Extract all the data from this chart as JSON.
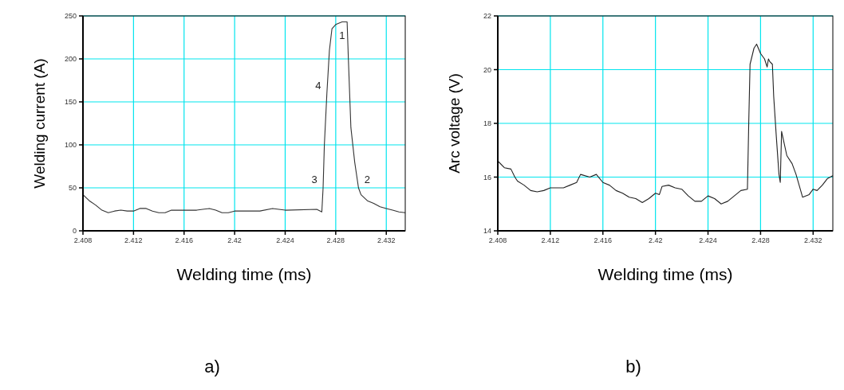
{
  "chart_data": [
    {
      "type": "line",
      "xlabel": "Welding time (ms)",
      "ylabel": "Welding current (A)",
      "annotations": [
        {
          "text": "1",
          "x": 2.4285,
          "y": 243
        },
        {
          "text": "4",
          "x": 2.4273,
          "y": 160
        },
        {
          "text": "3",
          "x": 2.427,
          "y": 50
        },
        {
          "text": "2",
          "x": 2.4298,
          "y": 50
        },
        "a)"
      ],
      "xlim": [
        2.408,
        2.4335
      ],
      "ylim": [
        0,
        250
      ],
      "xticks": [
        2.408,
        2.412,
        2.416,
        2.42,
        2.424,
        2.428,
        2.432
      ],
      "yticks": [
        0,
        50,
        100,
        150,
        200,
        250
      ],
      "grid": true,
      "series": [
        {
          "color": "#333333",
          "x": [
            2.408,
            2.4085,
            2.409,
            2.4095,
            2.41,
            2.4105,
            2.411,
            2.4115,
            2.412,
            2.4125,
            2.413,
            2.4135,
            2.414,
            2.4145,
            2.415,
            2.416,
            2.417,
            2.418,
            2.4185,
            2.419,
            2.4195,
            2.42,
            2.421,
            2.422,
            2.423,
            2.424,
            2.4265,
            2.4269,
            2.427,
            2.4271,
            2.4273,
            2.4275,
            2.4277,
            2.428,
            2.4285,
            2.4289,
            2.429,
            2.4292,
            2.4295,
            2.4298,
            2.43,
            2.4305,
            2.431,
            2.4315,
            2.432,
            2.4325,
            2.433,
            2.4335
          ],
          "values": [
            42,
            35,
            30,
            24,
            21,
            23,
            24,
            23,
            23,
            26,
            26,
            23,
            21,
            21,
            24,
            24,
            24,
            26,
            24,
            21,
            21,
            23,
            23,
            23,
            26,
            24,
            25,
            22,
            50,
            100,
            160,
            210,
            235,
            240,
            243,
            243,
            200,
            120,
            80,
            50,
            42,
            35,
            32,
            28,
            26,
            24,
            22,
            21
          ]
        }
      ]
    },
    {
      "type": "line",
      "xlabel": "Welding time (ms)",
      "ylabel": "Arc voltage (V)",
      "annotations": [
        "b)"
      ],
      "xlim": [
        2.408,
        2.4335
      ],
      "ylim": [
        14,
        22
      ],
      "xticks": [
        2.408,
        2.412,
        2.416,
        2.42,
        2.424,
        2.428,
        2.432
      ],
      "yticks": [
        14,
        16,
        18,
        20,
        22
      ],
      "grid": true,
      "series": [
        {
          "color": "#222222",
          "x": [
            2.408,
            2.4085,
            2.409,
            2.4093,
            2.4095,
            2.41,
            2.4105,
            2.411,
            2.4115,
            2.412,
            2.4125,
            2.413,
            2.4135,
            2.414,
            2.4143,
            2.415,
            2.4155,
            2.416,
            2.4165,
            2.417,
            2.4175,
            2.418,
            2.4185,
            2.419,
            2.4195,
            2.42,
            2.4203,
            2.4205,
            2.421,
            2.4215,
            2.422,
            2.4225,
            2.423,
            2.4235,
            2.424,
            2.4245,
            2.425,
            2.4255,
            2.426,
            2.4265,
            2.427,
            2.4271,
            2.4272,
            2.4275,
            2.4277,
            2.428,
            2.4283,
            2.4285,
            2.4286,
            2.4287,
            2.4289,
            2.429,
            2.4292,
            2.4294,
            2.4295,
            2.4296,
            2.43,
            2.4304,
            2.4307,
            2.4312,
            2.4317,
            2.432,
            2.4323,
            2.4327,
            2.4331,
            2.4335
          ],
          "values": [
            16.6,
            16.35,
            16.3,
            16.0,
            15.85,
            15.7,
            15.5,
            15.45,
            15.5,
            15.6,
            15.6,
            15.6,
            15.7,
            15.8,
            16.1,
            16.0,
            16.1,
            15.8,
            15.7,
            15.5,
            15.4,
            15.25,
            15.2,
            15.05,
            15.2,
            15.4,
            15.35,
            15.65,
            15.7,
            15.6,
            15.55,
            15.3,
            15.1,
            15.1,
            15.3,
            15.2,
            15.0,
            15.1,
            15.3,
            15.5,
            15.55,
            18.0,
            20.2,
            20.8,
            20.95,
            20.6,
            20.4,
            20.1,
            20.4,
            20.3,
            20.2,
            19.0,
            17.5,
            16.1,
            15.8,
            17.7,
            16.8,
            16.5,
            16.1,
            15.25,
            15.35,
            15.55,
            15.5,
            15.7,
            15.95,
            16.05
          ]
        }
      ]
    }
  ]
}
